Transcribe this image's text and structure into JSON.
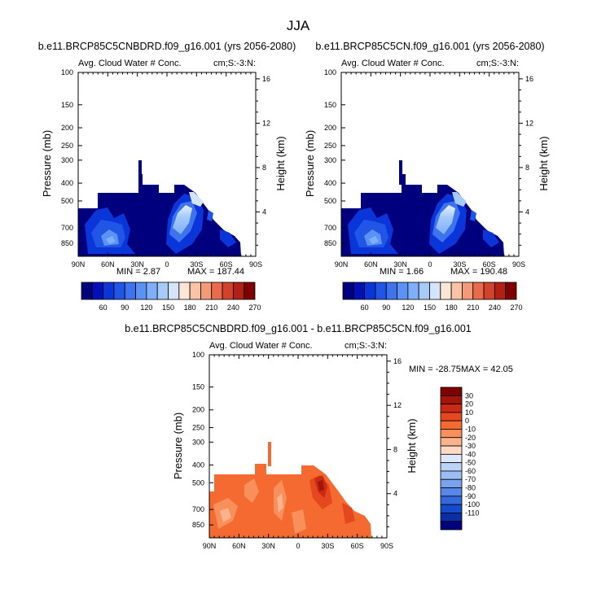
{
  "title": "JJA",
  "chart_data": [
    {
      "type": "heatmap",
      "id": "left",
      "title": "b.e11.BRCP85C5CNBDRD.f09_g16.001 (yrs 2056-2080)",
      "subtitle": "Avg. Cloud Water # Conc.",
      "units": "cm;S:-3:N:",
      "xlabel": "",
      "ylabel": "Pressure (mb)",
      "ylabel2": "Height (km)",
      "x_ticks": [
        "90N",
        "60N",
        "30N",
        "0",
        "30S",
        "60S",
        "90S"
      ],
      "x_range": [
        90,
        -90
      ],
      "y_ticks": [
        100,
        150,
        200,
        250,
        300,
        400,
        500,
        700,
        850
      ],
      "y_range": [
        100,
        1000
      ],
      "y2_ticks": [
        4,
        8,
        12,
        16
      ],
      "min_label": "MIN =   2.87",
      "max_label": "MAX = 187.44",
      "colorbar_labels": [
        "60",
        "90",
        "120",
        "150",
        "180",
        "210",
        "240",
        "270"
      ]
    },
    {
      "type": "heatmap",
      "id": "right",
      "title": "b.e11.BRCP85C5CN.f09_g16.001 (yrs 2056-2080)",
      "subtitle": "Avg. Cloud Water # Conc.",
      "units": "cm;S:-3:N:",
      "xlabel": "",
      "ylabel": "Pressure (mb)",
      "ylabel2": "Height (km)",
      "x_ticks": [
        "90N",
        "60N",
        "30N",
        "0",
        "30S",
        "60S",
        "90S"
      ],
      "x_range": [
        90,
        -90
      ],
      "y_ticks": [
        100,
        150,
        200,
        250,
        300,
        400,
        500,
        700,
        850
      ],
      "y_range": [
        100,
        1000
      ],
      "y2_ticks": [
        4,
        8,
        12,
        16
      ],
      "min_label": "MIN =   1.66",
      "max_label": "MAX = 190.48",
      "colorbar_labels": [
        "60",
        "90",
        "120",
        "150",
        "180",
        "210",
        "240",
        "270"
      ]
    },
    {
      "type": "heatmap",
      "id": "diff",
      "title": "b.e11.BRCP85C5CNBDRD.f09_g16.001 - b.e11.BRCP85C5CN.f09_g16.001",
      "subtitle": "Avg. Cloud Water # Conc.",
      "units": "cm;S:-3:N:",
      "xlabel": "",
      "ylabel": "Pressure (mb)",
      "ylabel2": "Height (km)",
      "x_ticks": [
        "90N",
        "60N",
        "30N",
        "0",
        "30S",
        "60S",
        "90S"
      ],
      "x_range": [
        90,
        -90
      ],
      "y_ticks": [
        100,
        150,
        200,
        250,
        300,
        400,
        500,
        700,
        850
      ],
      "y_range": [
        100,
        1000
      ],
      "y2_ticks": [
        4,
        8,
        12,
        16
      ],
      "min_label": "MIN = -28.75",
      "max_label": "MAX =  42.05",
      "colorbar_labels": [
        "30",
        "20",
        "10",
        "0",
        "-10",
        "-20",
        "-30",
        "-40",
        "-50",
        "-60",
        "-70",
        "-80",
        "-90",
        "-100",
        "-110"
      ]
    }
  ],
  "colors": {
    "abs_scale": [
      "#00007f",
      "#0010b8",
      "#0a35d8",
      "#2155e6",
      "#3d74ee",
      "#5b92f4",
      "#7eaff8",
      "#a6cbfb",
      "#d4e5fb",
      "#fde6d6",
      "#fbc3a6",
      "#f59a78",
      "#ea6b4c",
      "#d3422b",
      "#b21f14",
      "#7f0000"
    ],
    "diff_scale": [
      "#7f0000",
      "#a31508",
      "#c92a14",
      "#e5481f",
      "#f46a30",
      "#f98f5a",
      "#fbb38e",
      "#fdd8c2",
      "#dde9fb",
      "#bcd3f8",
      "#9bbcf4",
      "#7aa3ef",
      "#5887e7",
      "#3469dc",
      "#134bcc",
      "#0a2ea8",
      "#00007f"
    ]
  }
}
